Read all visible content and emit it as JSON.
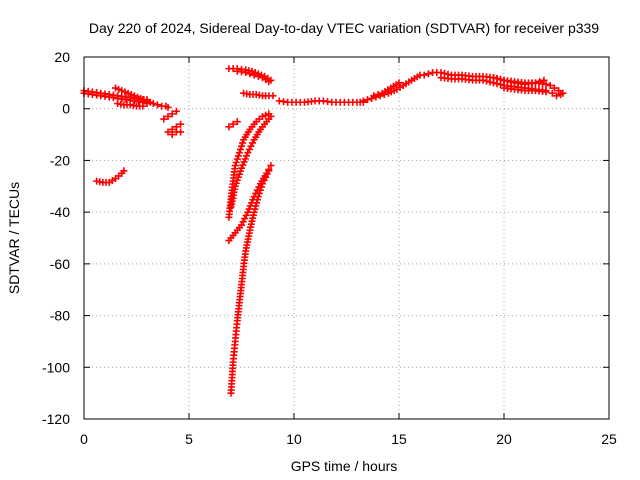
{
  "chart_data": {
    "type": "scatter",
    "title": "Day 220 of 2024, Sidereal Day-to-day VTEC variation (SDTVAR) for receiver p339",
    "xlabel": "GPS time / hours",
    "ylabel": "SDTVAR / TECUs",
    "xlim": [
      0,
      25
    ],
    "ylim": [
      -120,
      20
    ],
    "xticks": [
      0,
      5,
      10,
      15,
      20,
      25
    ],
    "yticks": [
      -120,
      -100,
      -80,
      -60,
      -40,
      -20,
      0,
      20
    ],
    "grid": true,
    "marker": "+",
    "color": "#ff0000",
    "series": [
      {
        "name": "seg-early-a",
        "x": [
          0.0,
          0.4,
          0.8,
          1.2,
          1.6,
          2.0,
          2.4,
          2.8,
          3.0
        ],
        "y": [
          6,
          5.5,
          5,
          4.5,
          4,
          3.5,
          3,
          2.5,
          2
        ]
      },
      {
        "name": "seg-early-b",
        "x": [
          0.0,
          0.4,
          0.8,
          1.2,
          1.6,
          2.0,
          2.4,
          2.8,
          3.0
        ],
        "y": [
          7,
          6.5,
          6,
          5.5,
          5,
          4.5,
          4,
          3.5,
          3.5
        ]
      },
      {
        "name": "seg-early-c",
        "x": [
          1.5,
          1.8,
          2.1,
          2.4,
          2.7,
          3.0,
          3.3
        ],
        "y": [
          8,
          7,
          6,
          5,
          4,
          3,
          2
        ]
      },
      {
        "name": "seg-early-d",
        "x": [
          1.6,
          1.9,
          2.2,
          2.5,
          2.8
        ],
        "y": [
          2,
          1.5,
          1.5,
          1,
          1
        ]
      },
      {
        "name": "seg-3h",
        "x": [
          3.5,
          3.7,
          3.9,
          4.0
        ],
        "y": [
          1.5,
          1,
          1,
          0.5
        ]
      },
      {
        "name": "seg-4h-a",
        "x": [
          3.8,
          4.0,
          4.2,
          4.4
        ],
        "y": [
          -4,
          -3,
          -2,
          -1
        ]
      },
      {
        "name": "seg-4h-b",
        "x": [
          4.0,
          4.2,
          4.4,
          4.6
        ],
        "y": [
          -9,
          -8,
          -7,
          -6
        ]
      },
      {
        "name": "seg-4h-c",
        "x": [
          4.2,
          4.4,
          4.6
        ],
        "y": [
          -10,
          -9,
          -9
        ]
      },
      {
        "name": "seg-neg28",
        "x": [
          0.6,
          0.9,
          1.2,
          1.5,
          1.8,
          1.9
        ],
        "y": [
          -28,
          -28.5,
          -28.5,
          -27,
          -25,
          -24
        ]
      },
      {
        "name": "seg-7h-short",
        "x": [
          6.9,
          7.1,
          7.3
        ],
        "y": [
          -7,
          -6,
          -5
        ]
      },
      {
        "name": "seg-top-a",
        "x": [
          6.9,
          7.3,
          7.7,
          8.0,
          8.3,
          8.6,
          8.9
        ],
        "y": [
          15.5,
          15.5,
          15,
          14.5,
          13.5,
          12.5,
          11
        ]
      },
      {
        "name": "seg-top-b",
        "x": [
          7.3,
          7.7,
          8.1,
          8.5,
          8.8
        ],
        "y": [
          14.5,
          14,
          13,
          12,
          10.5
        ]
      },
      {
        "name": "seg-8h",
        "x": [
          7.6,
          7.9,
          8.2,
          8.5,
          8.8,
          9.0
        ],
        "y": [
          6,
          5.5,
          5.5,
          5,
          5,
          5
        ]
      },
      {
        "name": "seg-steep-a",
        "x": [
          6.9,
          7.0,
          7.1,
          7.2,
          7.4,
          7.6,
          7.9,
          8.2,
          8.5,
          8.8
        ],
        "y": [
          -42,
          -35,
          -28,
          -22,
          -17,
          -12,
          -8,
          -5,
          -3,
          -2
        ]
      },
      {
        "name": "seg-steep-b",
        "x": [
          7.0,
          7.2,
          7.5,
          7.8,
          8.1,
          8.4,
          8.7,
          8.9
        ],
        "y": [
          -38,
          -30,
          -23,
          -17,
          -12,
          -8,
          -5,
          -3
        ]
      },
      {
        "name": "seg-steep-c",
        "x": [
          6.9,
          7.2,
          7.5,
          7.8,
          8.1,
          8.4,
          8.7,
          8.9
        ],
        "y": [
          -51,
          -48,
          -45,
          -40,
          -34,
          -29,
          -25,
          -22
        ]
      },
      {
        "name": "seg-plunge",
        "x": [
          7.0,
          7.05,
          7.1,
          7.2,
          7.3,
          7.4,
          7.5,
          7.6,
          7.7,
          7.9,
          8.1,
          8.3,
          8.5,
          8.8
        ],
        "y": [
          -110,
          -104,
          -98,
          -90,
          -82,
          -75,
          -68,
          -61,
          -55,
          -47,
          -40,
          -34,
          -29,
          -24
        ]
      },
      {
        "name": "seg-9-13h",
        "x": [
          9.3,
          9.7,
          10.1,
          10.5,
          11.0,
          11.4,
          11.8,
          12.2,
          12.6,
          13.0,
          13.3
        ],
        "y": [
          3,
          2.5,
          2.5,
          2.5,
          3,
          3,
          2.5,
          2.5,
          2.5,
          2.5,
          2.5
        ]
      },
      {
        "name": "seg-mid",
        "x": [
          13.3,
          13.7,
          14.1,
          14.5,
          14.9,
          15.2,
          15.6,
          16.0
        ],
        "y": [
          3,
          4,
          5,
          6,
          7.5,
          9,
          11,
          13
        ]
      },
      {
        "name": "seg-mid-b",
        "x": [
          13.8,
          14.2,
          14.6,
          15.0
        ],
        "y": [
          5,
          6,
          8,
          10
        ]
      },
      {
        "name": "seg-late-a",
        "x": [
          16.2,
          16.6,
          17.0,
          17.5,
          18.0,
          18.5,
          19.0,
          19.5,
          20.0,
          20.5,
          21.0,
          21.5,
          22.0
        ],
        "y": [
          13,
          14,
          14,
          13,
          13,
          12.5,
          12.5,
          12,
          11,
          10.5,
          10,
          10,
          9.5
        ]
      },
      {
        "name": "seg-late-b",
        "x": [
          17.0,
          17.5,
          18.0,
          18.5,
          19.0,
          19.5,
          20.0,
          20.5,
          21.0,
          21.5,
          22.0
        ],
        "y": [
          12,
          11.5,
          11.5,
          11,
          11,
          10,
          9,
          8.5,
          8,
          7.5,
          7
        ]
      },
      {
        "name": "seg-late-c",
        "x": [
          19.5,
          20.0,
          20.5,
          21.0,
          21.5,
          21.9
        ],
        "y": [
          12,
          11,
          10,
          9.5,
          10,
          11
        ]
      },
      {
        "name": "seg-late-d",
        "x": [
          20.0,
          20.5,
          21.0,
          21.5,
          22.0
        ],
        "y": [
          8,
          7.5,
          7,
          7,
          6.5
        ]
      },
      {
        "name": "seg-end",
        "x": [
          22.2,
          22.4,
          22.6,
          22.8
        ],
        "y": [
          9,
          8,
          7,
          6
        ]
      },
      {
        "name": "seg-end-b",
        "x": [
          22.3,
          22.5,
          22.7
        ],
        "y": [
          6,
          5,
          5.5
        ]
      }
    ]
  }
}
